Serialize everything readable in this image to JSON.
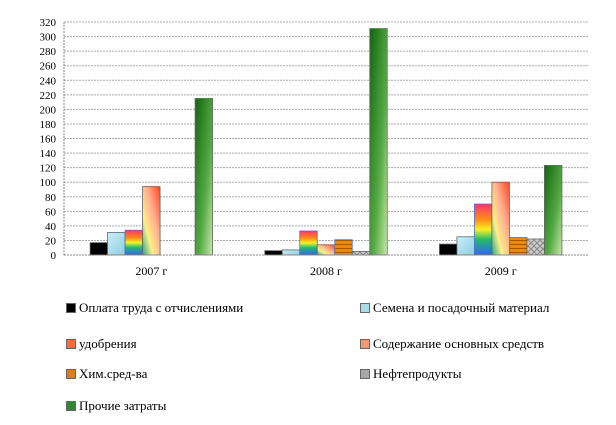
{
  "chart_data": {
    "type": "bar",
    "categories": [
      "2007 г",
      "2008 г",
      "2009 г"
    ],
    "ylim": [
      0,
      320
    ],
    "yticks": [
      0,
      20,
      40,
      60,
      80,
      100,
      120,
      140,
      160,
      180,
      200,
      220,
      240,
      260,
      280,
      300,
      320
    ],
    "grid": true,
    "legend_placement": "bottom",
    "series": [
      {
        "name": "Оплата труда с отчислениями",
        "values": [
          17,
          6,
          15
        ],
        "color": "#000000"
      },
      {
        "name": "Семена и посадочный материал",
        "values": [
          31,
          7,
          25
        ],
        "color": "#a8dcea"
      },
      {
        "name": "удобрения",
        "values": [
          34,
          33,
          70
        ],
        "color": "#ff6a3a"
      },
      {
        "name": "Содержание основных средств",
        "values": [
          94,
          14,
          100
        ],
        "color": "#f29a6a"
      },
      {
        "name": "Хим.сред-ва",
        "values": [
          0,
          21,
          24
        ],
        "color": "#e07b10"
      },
      {
        "name": "Нефтепродукты",
        "values": [
          0,
          5,
          22
        ],
        "color": "#a8a8a8"
      },
      {
        "name": "Прочие затраты",
        "values": [
          215,
          311,
          123
        ],
        "color": "#2f8a2f"
      }
    ]
  }
}
